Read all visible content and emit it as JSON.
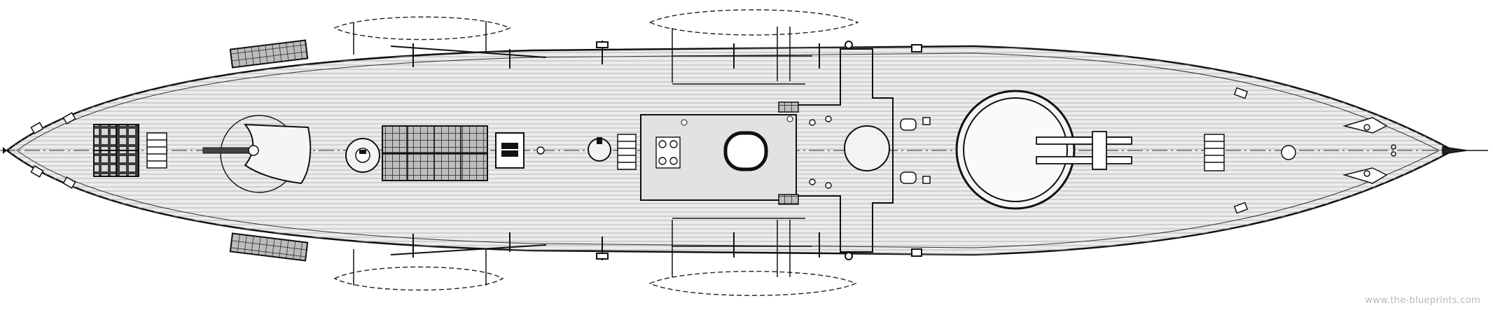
{
  "drawing": {
    "subject": "warship deck plan (top view)",
    "line_color": "#1a1a1a",
    "deck_fill": "#e9e9e9",
    "plank_color": "#9a9a9a",
    "boat_outline": "dashed",
    "icons": [
      "hull-outline",
      "deck-planking",
      "turret",
      "funnel",
      "boat",
      "hatch",
      "capstan",
      "skylight",
      "gun"
    ]
  },
  "watermark": {
    "text": "www.the-blueprints.com"
  }
}
